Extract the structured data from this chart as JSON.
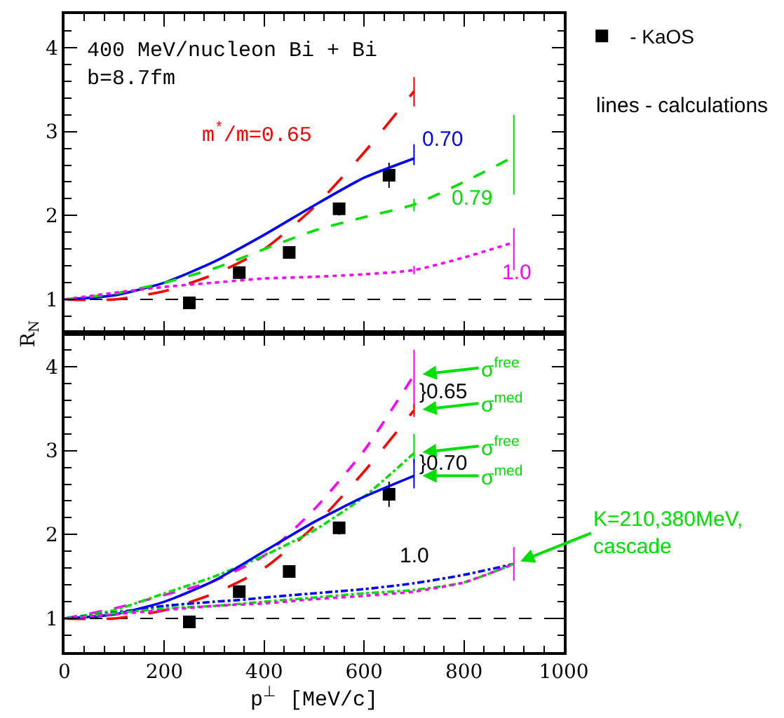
{
  "chart_data": [
    {
      "type": "line",
      "xlim": [
        0,
        1000
      ],
      "ylim": [
        0.6,
        4.4
      ],
      "xticks": [
        0,
        200,
        400,
        600,
        800,
        1000
      ],
      "yticks": [
        1,
        2,
        3,
        4
      ],
      "tick_labels": "y",
      "ylabel": "R$_{N}$",
      "grid": false,
      "legend": "top right",
      "ref_lines": [
        {
          "axis": "y",
          "value": 1,
          "color": "#000000",
          "line_style": "dashed"
        }
      ],
      "series": [
        {
          "name": "- KaOS",
          "type": "scatter",
          "color": "#000000",
          "marker": "square",
          "x": [
            250,
            350,
            450,
            550,
            650
          ],
          "values": [
            0.96,
            1.32,
            1.56,
            2.08,
            2.48
          ],
          "errors": [
            null,
            null,
            null,
            [
              2.0,
              2.15
            ],
            [
              2.33,
              2.63
            ]
          ]
        },
        {
          "type": "line",
          "color": "#ff0000",
          "line_style": "longdash",
          "x": [
            0,
            100,
            200,
            300,
            400,
            500,
            600,
            700
          ],
          "values": [
            1,
            1.0,
            1.1,
            1.3,
            1.6,
            2.1,
            2.75,
            3.48
          ],
          "errors": [
            null,
            null,
            null,
            null,
            null,
            null,
            null,
            [
              3.3,
              3.65
            ]
          ]
        },
        {
          "type": "line",
          "color": "#0000ff",
          "line_style": "solid",
          "x": [
            0,
            100,
            200,
            300,
            400,
            500,
            600,
            700
          ],
          "values": [
            1,
            1.05,
            1.2,
            1.45,
            1.77,
            2.12,
            2.45,
            2.68
          ],
          "errors": [
            null,
            null,
            null,
            null,
            null,
            null,
            null,
            [
              2.6,
              2.85
            ]
          ]
        },
        {
          "type": "line",
          "color": "#00e000",
          "line_style": "dashed",
          "x": [
            0,
            100,
            200,
            300,
            400,
            500,
            600,
            700,
            800,
            900
          ],
          "values": [
            1,
            1.07,
            1.2,
            1.37,
            1.6,
            1.82,
            1.98,
            2.13,
            2.4,
            2.7
          ],
          "errors": [
            null,
            null,
            null,
            null,
            null,
            null,
            null,
            [
              2.05,
              2.2
            ],
            null,
            [
              2.25,
              3.2
            ]
          ]
        },
        {
          "type": "line",
          "color": "#ff00ff",
          "line_style": "dotted",
          "x": [
            0,
            100,
            200,
            300,
            400,
            500,
            600,
            700,
            800,
            900
          ],
          "values": [
            1,
            1.08,
            1.15,
            1.2,
            1.25,
            1.27,
            1.3,
            1.35,
            1.5,
            1.68
          ],
          "errors": [
            null,
            null,
            null,
            null,
            null,
            null,
            null,
            [
              1.3,
              1.4
            ],
            null,
            [
              1.35,
              1.85
            ]
          ]
        }
      ],
      "annotations": [
        "400 MeV/nucleon Bi + Bi",
        "b=8.7fm",
        "m$^{*}$/m=0.65",
        "0.70",
        "0.79",
        "1.0",
        "lines - calculations"
      ]
    },
    {
      "type": "line",
      "xlim": [
        0,
        1000
      ],
      "ylim": [
        0.6,
        4.4
      ],
      "xticks": [
        0,
        200,
        400,
        600,
        800,
        1000
      ],
      "yticks": [
        1,
        2,
        3,
        4
      ],
      "xlabel": "p$^{⊥}$ [MeV/c]",
      "grid": false,
      "legend": false,
      "ref_lines": [
        {
          "axis": "y",
          "value": 1,
          "color": "#000000",
          "line_style": "dashed"
        }
      ],
      "series": [
        {
          "type": "scatter",
          "color": "#000000",
          "marker": "square",
          "x": [
            250,
            350,
            450,
            550,
            650
          ],
          "values": [
            0.96,
            1.32,
            1.56,
            2.08,
            2.48
          ],
          "errors": [
            null,
            null,
            null,
            [
              2.0,
              2.15
            ],
            [
              2.33,
              2.63
            ]
          ]
        },
        {
          "type": "line",
          "color": "#ff00ff",
          "line_style": "dashed",
          "x": [
            0,
            100,
            200,
            300,
            400,
            500,
            600,
            700
          ],
          "values": [
            1,
            1.12,
            1.28,
            1.45,
            1.75,
            2.3,
            3.0,
            3.9
          ],
          "errors": [
            null,
            null,
            null,
            null,
            null,
            null,
            null,
            [
              3.5,
              4.2
            ]
          ]
        },
        {
          "type": "line",
          "color": "#ff0000",
          "line_style": "longdash",
          "x": [
            0,
            100,
            200,
            300,
            400,
            500,
            600,
            700
          ],
          "values": [
            1,
            1.0,
            1.1,
            1.3,
            1.6,
            2.1,
            2.75,
            3.48
          ],
          "errors": [
            null,
            null,
            null,
            null,
            null,
            null,
            null,
            [
              3.4,
              3.55
            ]
          ]
        },
        {
          "type": "line",
          "color": "#00e000",
          "line_style": "dashdot",
          "x": [
            0,
            100,
            200,
            300,
            400,
            500,
            600,
            700
          ],
          "values": [
            1,
            1.1,
            1.3,
            1.5,
            1.75,
            2.05,
            2.45,
            2.97
          ],
          "errors": [
            null,
            null,
            null,
            null,
            null,
            null,
            null,
            [
              2.85,
              3.2
            ]
          ]
        },
        {
          "type": "line",
          "color": "#0000ff",
          "line_style": "solid",
          "x": [
            0,
            100,
            200,
            300,
            400,
            500,
            600,
            700
          ],
          "values": [
            1,
            1.05,
            1.2,
            1.45,
            1.8,
            2.15,
            2.45,
            2.7
          ],
          "errors": [
            null,
            null,
            null,
            null,
            null,
            null,
            null,
            [
              2.55,
              2.9
            ]
          ]
        },
        {
          "type": "line",
          "color": "#0000ff",
          "line_style": "dashdot",
          "x": [
            0,
            100,
            200,
            300,
            350,
            400,
            500,
            600,
            700,
            800,
            900
          ],
          "values": [
            1,
            1.07,
            1.15,
            1.2,
            1.22,
            1.25,
            1.3,
            1.35,
            1.42,
            1.52,
            1.65
          ]
        },
        {
          "type": "line",
          "color": "#00e000",
          "line_style": "dashdot",
          "x": [
            0,
            200,
            300,
            400,
            500,
            600,
            700,
            800,
            900
          ],
          "values": [
            1,
            1.12,
            1.15,
            1.2,
            1.25,
            1.3,
            1.34,
            1.43,
            1.65
          ]
        },
        {
          "type": "line",
          "color": "#ff00ff",
          "line_style": "dotted",
          "x": [
            0,
            200,
            300,
            400,
            500,
            600,
            700,
            800,
            900
          ],
          "values": [
            1,
            1.1,
            1.15,
            1.18,
            1.23,
            1.27,
            1.32,
            1.43,
            1.65
          ],
          "errors": [
            null,
            null,
            null,
            null,
            null,
            null,
            null,
            null,
            [
              1.45,
              1.85
            ]
          ]
        }
      ],
      "annotations": [
        "σ$^{free}$",
        "}0.65",
        "σ$^{med}$",
        "σ$^{free}$",
        "}0.70",
        "σ$^{med}$",
        "1.0",
        {
          "text": "K=210,380MeV,\ncascade",
          "x": 900,
          "y": 1.65
        }
      ]
    }
  ]
}
